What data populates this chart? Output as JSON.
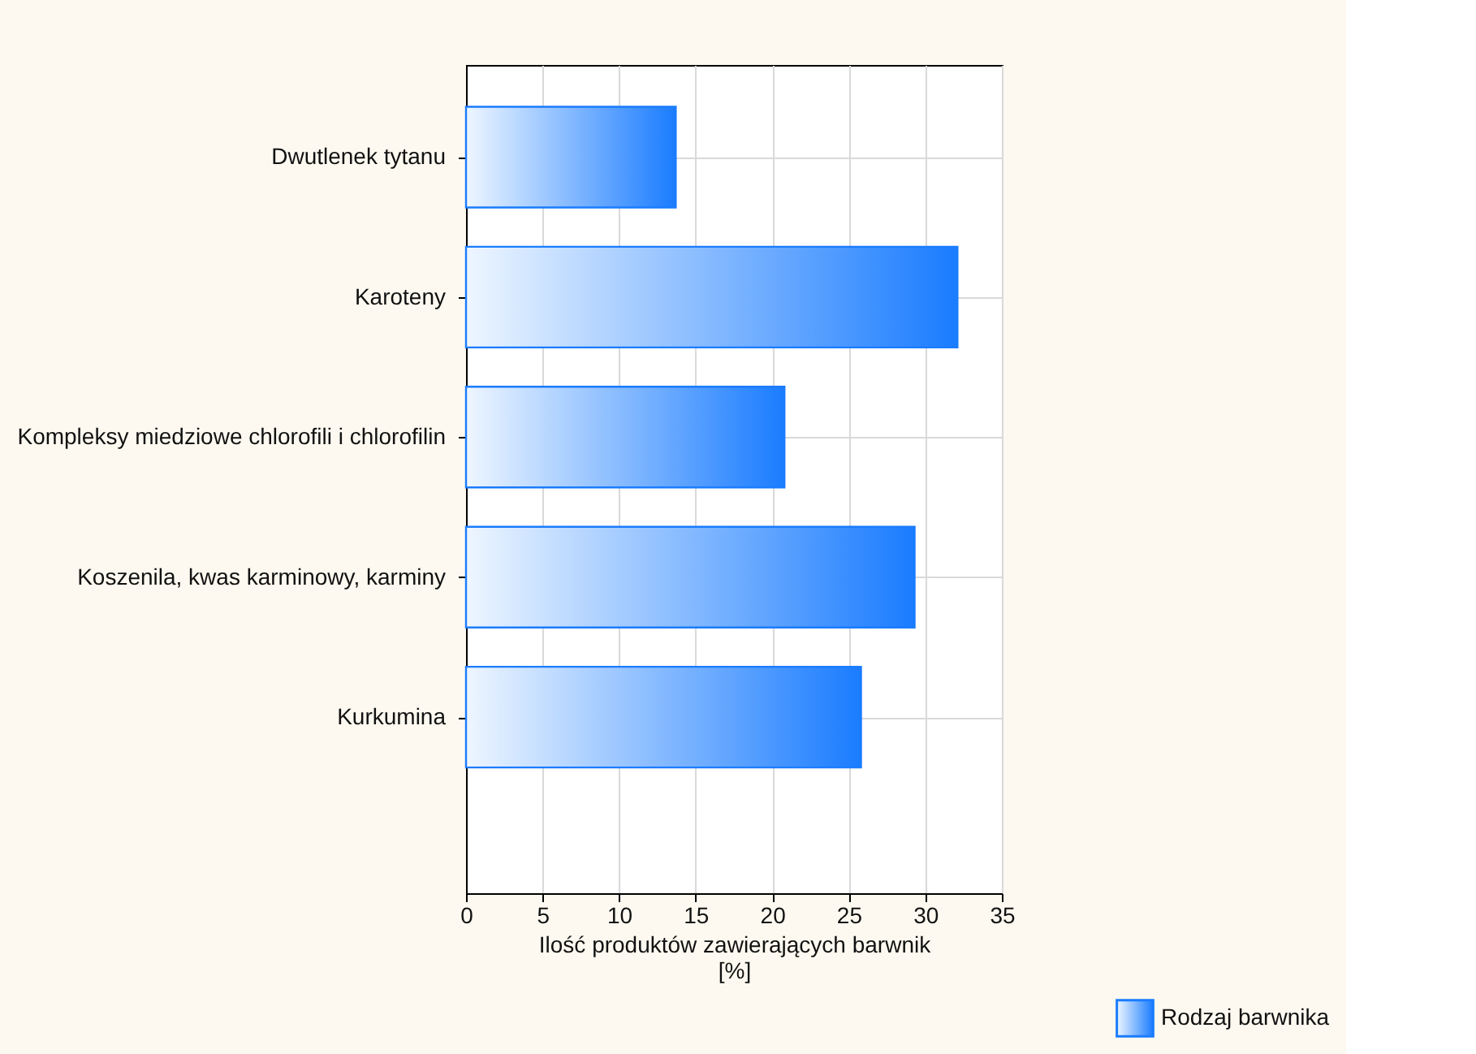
{
  "chart_data": {
    "type": "bar",
    "orientation": "horizontal",
    "categories": [
      "Dwutlenek tytanu",
      "Karoteny",
      "Kompleksy miedziowe chlorofili i chlorofilin",
      "Koszenila, kwas karminowy, karminy",
      "Kurkumina"
    ],
    "series": [
      {
        "name": "Rodzaj barwnika",
        "color": "#1a7cff",
        "values": [
          13.7,
          32.1,
          20.8,
          29.3,
          25.8
        ]
      }
    ],
    "xlabel": "Ilość produktów zawierających barwnik [%]",
    "xlim": [
      0,
      35
    ],
    "xticks": [
      0,
      5,
      10,
      15,
      20,
      25,
      30,
      35
    ],
    "grid": true,
    "legend": "bottom right"
  }
}
